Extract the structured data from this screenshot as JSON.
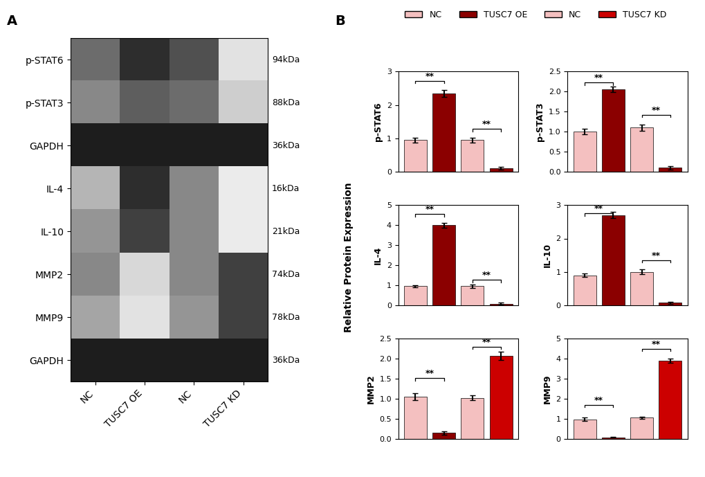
{
  "panel_labels": [
    "A",
    "B"
  ],
  "ylabel": "Relative Protein Expression",
  "legend": "upper center",
  "legend_entries": [
    {
      "name": "NC",
      "color": "#F4C0C0"
    },
    {
      "name": "TUSC7 OE",
      "color": "#8B0000"
    },
    {
      "name": "NC",
      "color": "#F4C0C0"
    },
    {
      "name": "TUSC7 KD",
      "color": "#CC0000"
    }
  ],
  "chart_data": [
    {
      "type": "heatmap",
      "x_categories": [
        "NC",
        "TUSC7 OE",
        "NC",
        "TUSC7 KD"
      ],
      "y_categories": [
        "p-STAT6",
        "p-STAT3",
        "GAPDH",
        "IL-4",
        "IL-10",
        "MMP2",
        "MMP9",
        "GAPDH"
      ],
      "row_labels_right": [
        "94kDa",
        "88kDa",
        "36kDa",
        "16kDa",
        "21kDa",
        "74kDa",
        "78kDa",
        "36kDa"
      ],
      "cells": [
        [
          0.65,
          0.85,
          0.75,
          0.2
        ],
        [
          0.55,
          0.7,
          0.65,
          0.3
        ],
        [
          0.9,
          0.9,
          0.9,
          0.9
        ],
        [
          0.4,
          0.85,
          0.55,
          0.15
        ],
        [
          0.5,
          0.8,
          0.55,
          0.15
        ],
        [
          0.55,
          0.25,
          0.55,
          0.8
        ],
        [
          0.45,
          0.2,
          0.5,
          0.8
        ],
        [
          0.9,
          0.9,
          0.9,
          0.9
        ]
      ],
      "clim": [
        0,
        1
      ]
    },
    {
      "type": "bar",
      "ylabel": "p-STAT6",
      "categories": [
        null,
        null,
        null,
        null
      ],
      "values": [
        0.95,
        2.35,
        0.95,
        0.1
      ],
      "errors": [
        0.07,
        0.1,
        0.07,
        0.04
      ],
      "colors": [
        "#F4C0C0",
        "#8B0000",
        "#F4C0C0",
        "#8B0000"
      ],
      "ylim": [
        0,
        3
      ],
      "yticks": [
        0,
        1,
        2,
        3
      ],
      "annotations": [
        {
          "from": 0,
          "to": 1,
          "y": 2.72,
          "text": "**"
        },
        {
          "from": 2,
          "to": 3,
          "y": 1.28,
          "text": "**"
        }
      ]
    },
    {
      "type": "bar",
      "ylabel": "p-STAT3",
      "categories": [
        null,
        null,
        null,
        null
      ],
      "values": [
        1.0,
        2.05,
        1.1,
        0.1
      ],
      "errors": [
        0.07,
        0.07,
        0.08,
        0.04
      ],
      "colors": [
        "#F4C0C0",
        "#8B0000",
        "#F4C0C0",
        "#8B0000"
      ],
      "ylim": [
        0,
        2.5
      ],
      "yticks": [
        {
          "value": 0,
          "label": "0.0"
        },
        0.5,
        {
          "value": 1,
          "label": "1.0"
        },
        1.5,
        {
          "value": 2,
          "label": "2.0"
        },
        2.5
      ],
      "annotations": [
        {
          "from": 0,
          "to": 1,
          "y": 2.23,
          "text": "**"
        },
        {
          "from": 2,
          "to": 3,
          "y": 1.42,
          "text": "**"
        }
      ]
    },
    {
      "type": "bar",
      "ylabel": "IL-4",
      "categories": [
        null,
        null,
        null,
        null
      ],
      "values": [
        0.95,
        4.0,
        0.95,
        0.08
      ],
      "errors": [
        0.06,
        0.12,
        0.08,
        0.04
      ],
      "colors": [
        "#F4C0C0",
        "#8B0000",
        "#F4C0C0",
        "#8B0000"
      ],
      "ylim": [
        0,
        5
      ],
      "yticks": [
        0,
        1,
        2,
        3,
        4,
        5
      ],
      "annotations": [
        {
          "from": 0,
          "to": 1,
          "y": 4.55,
          "text": "**"
        },
        {
          "from": 2,
          "to": 3,
          "y": 1.28,
          "text": "**"
        }
      ]
    },
    {
      "type": "bar",
      "ylabel": "IL-10",
      "categories": [
        null,
        null,
        null,
        null
      ],
      "values": [
        0.9,
        2.7,
        1.0,
        0.08
      ],
      "errors": [
        0.06,
        0.09,
        0.07,
        0.03
      ],
      "colors": [
        "#F4C0C0",
        "#8B0000",
        "#F4C0C0",
        "#8B0000"
      ],
      "ylim": [
        0,
        3
      ],
      "yticks": [
        0,
        1,
        2,
        3
      ],
      "annotations": [
        {
          "from": 0,
          "to": 1,
          "y": 2.75,
          "text": "**"
        },
        {
          "from": 2,
          "to": 3,
          "y": 1.35,
          "text": "**"
        }
      ]
    },
    {
      "type": "bar",
      "ylabel": "MMP2",
      "categories": [
        null,
        null,
        null,
        null
      ],
      "values": [
        1.05,
        0.15,
        1.02,
        2.07
      ],
      "errors": [
        0.08,
        0.04,
        0.06,
        0.1
      ],
      "colors": [
        "#F4C0C0",
        "#8B0000",
        "#F4C0C0",
        "#CC0000"
      ],
      "ylim": [
        0,
        2.5
      ],
      "yticks": [
        {
          "value": 0,
          "label": "0.0"
        },
        0.5,
        {
          "value": 1,
          "label": "1.0"
        },
        1.5,
        {
          "value": 2,
          "label": "2.0"
        },
        2.5
      ],
      "annotations": [
        {
          "from": 0,
          "to": 1,
          "y": 1.52,
          "text": "**"
        },
        {
          "from": 2,
          "to": 3,
          "y": 2.3,
          "text": "**"
        }
      ]
    },
    {
      "type": "bar",
      "ylabel": "MMP9",
      "categories": [
        null,
        null,
        null,
        null
      ],
      "values": [
        0.98,
        0.08,
        1.05,
        3.9
      ],
      "errors": [
        0.07,
        0.03,
        0.06,
        0.1
      ],
      "colors": [
        "#F4C0C0",
        "#8B0000",
        "#F4C0C0",
        "#CC0000"
      ],
      "ylim": [
        0,
        5
      ],
      "yticks": [
        0,
        1,
        2,
        3,
        4,
        5
      ],
      "annotations": [
        {
          "from": 0,
          "to": 1,
          "y": 1.7,
          "text": "**"
        },
        {
          "from": 2,
          "to": 3,
          "y": 4.5,
          "text": "**"
        }
      ]
    }
  ]
}
